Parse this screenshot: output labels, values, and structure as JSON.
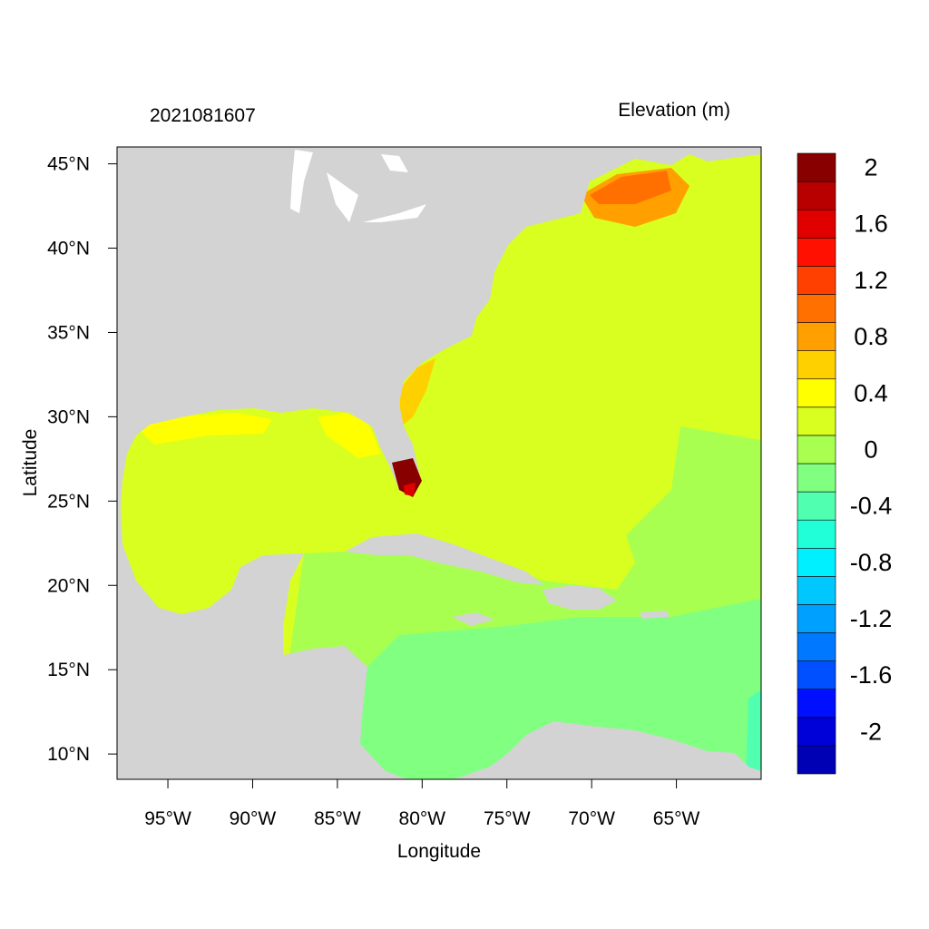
{
  "map": {
    "timestamp": "2021081607",
    "units_title": "Elevation (m)",
    "xlabel": "Longitude",
    "ylabel": "Latitude",
    "lon_range": [
      -98,
      -60
    ],
    "lat_range": [
      8.5,
      46
    ],
    "x_ticks": [
      {
        "value": -95,
        "label": "95°W"
      },
      {
        "value": -90,
        "label": "90°W"
      },
      {
        "value": -85,
        "label": "85°W"
      },
      {
        "value": -80,
        "label": "80°W"
      },
      {
        "value": -75,
        "label": "75°W"
      },
      {
        "value": -70,
        "label": "70°W"
      },
      {
        "value": -65,
        "label": "65°W"
      }
    ],
    "y_ticks": [
      {
        "value": 45,
        "label": "45°N"
      },
      {
        "value": 40,
        "label": "40°N"
      },
      {
        "value": 35,
        "label": "35°N"
      },
      {
        "value": 30,
        "label": "30°N"
      },
      {
        "value": 25,
        "label": "25°N"
      },
      {
        "value": 20,
        "label": "20°N"
      },
      {
        "value": 15,
        "label": "15°N"
      },
      {
        "value": 10,
        "label": "10°N"
      }
    ],
    "land_color": "#d3d3d3"
  },
  "legend": {
    "colors": [
      "#0000b4",
      "#0000d8",
      "#0010ff",
      "#0050ff",
      "#0078ff",
      "#00a0ff",
      "#00c8ff",
      "#00f0ff",
      "#20ffd8",
      "#50ffb0",
      "#80ff80",
      "#a8ff50",
      "#d8ff20",
      "#ffff00",
      "#ffd000",
      "#ffa000",
      "#ff7000",
      "#ff4000",
      "#ff1000",
      "#e00000",
      "#b80000",
      "#880000"
    ],
    "labels": [
      {
        "value": 2,
        "label": "2"
      },
      {
        "value": 1.6,
        "label": "1.6"
      },
      {
        "value": 1.2,
        "label": "1.2"
      },
      {
        "value": 0.8,
        "label": "0.8"
      },
      {
        "value": 0.4,
        "label": "0.4"
      },
      {
        "value": 0,
        "label": "0"
      },
      {
        "value": -0.4,
        "label": "-0.4"
      },
      {
        "value": -0.8,
        "label": "-0.8"
      },
      {
        "value": -1.2,
        "label": "-1.2"
      },
      {
        "value": -1.6,
        "label": "-1.6"
      },
      {
        "value": -2,
        "label": "-2"
      }
    ]
  }
}
